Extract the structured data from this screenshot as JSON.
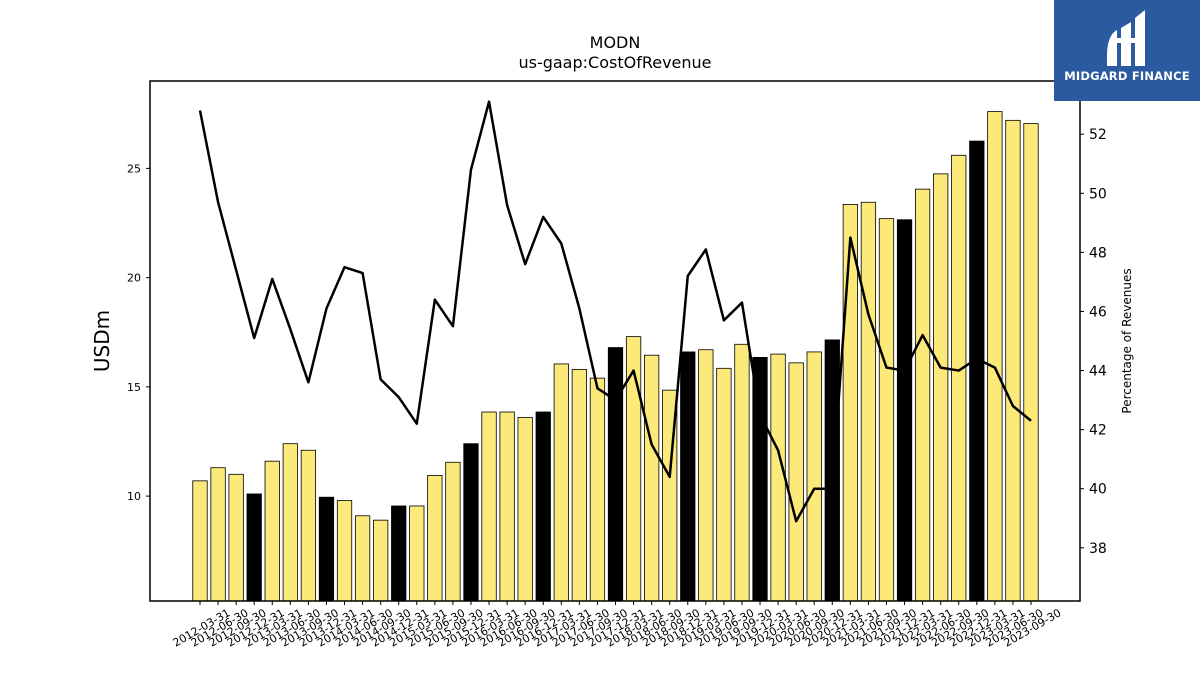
{
  "brand": {
    "name": "MIDGARD FINANCE",
    "bg_color": "#2c5aa0",
    "icon": "midgard-logo-icon"
  },
  "colors": {
    "bar_default": "#fbe97a",
    "bar_q4": "#000000",
    "line": "#000000"
  },
  "chart_data": {
    "type": "bar",
    "title": "MODN",
    "subtitle": "us-gaap:CostOfRevenue",
    "ylabel": "USDm",
    "y2label": "Percentage of Revenues",
    "ylim": [
      5.2,
      29.0
    ],
    "y2lim": [
      36.2,
      53.8
    ],
    "yticks": [
      10,
      15,
      20,
      25
    ],
    "y2ticks": [
      38,
      40,
      42,
      44,
      46,
      48,
      50,
      52
    ],
    "categories": [
      "2012-03-31",
      "2012-06-30",
      "2012-09-30",
      "2012-12-31",
      "2013-03-31",
      "2013-06-30",
      "2013-09-30",
      "2013-12-31",
      "2014-03-31",
      "2014-06-30",
      "2014-09-30",
      "2014-12-31",
      "2015-03-31",
      "2015-06-30",
      "2015-09-30",
      "2015-12-31",
      "2016-03-31",
      "2016-06-30",
      "2016-09-30",
      "2016-12-31",
      "2017-03-31",
      "2017-06-30",
      "2017-09-30",
      "2017-12-31",
      "2018-03-31",
      "2018-06-30",
      "2018-09-30",
      "2018-12-31",
      "2019-03-31",
      "2019-06-30",
      "2019-09-30",
      "2019-12-31",
      "2020-03-31",
      "2020-06-30",
      "2020-09-30",
      "2020-12-31",
      "2021-03-31",
      "2021-06-30",
      "2021-09-30",
      "2021-12-31",
      "2022-03-31",
      "2022-06-30",
      "2022-09-30",
      "2022-12-31",
      "2023-03-31",
      "2023-06-30",
      "2023-09-30"
    ],
    "series": [
      {
        "kind": "bar",
        "axis": "left",
        "values": [
          10.7,
          11.3,
          11.0,
          10.1,
          11.6,
          12.4,
          12.1,
          9.95,
          9.8,
          9.1,
          8.9,
          9.55,
          9.55,
          10.95,
          11.55,
          12.4,
          13.85,
          13.85,
          13.6,
          13.85,
          16.05,
          15.8,
          15.4,
          16.8,
          17.3,
          16.45,
          14.85,
          16.6,
          16.7,
          15.85,
          16.95,
          16.35,
          16.5,
          16.1,
          16.6,
          17.15,
          23.35,
          23.45,
          22.7,
          22.65,
          24.05,
          24.75,
          25.6,
          26.25,
          27.6,
          27.2,
          27.05
        ],
        "highlight": [
          false,
          false,
          false,
          true,
          false,
          false,
          false,
          true,
          false,
          false,
          false,
          true,
          false,
          false,
          false,
          true,
          false,
          false,
          false,
          true,
          false,
          false,
          false,
          true,
          false,
          false,
          false,
          true,
          false,
          false,
          false,
          true,
          false,
          false,
          false,
          true,
          false,
          false,
          false,
          true,
          false,
          false,
          false,
          true,
          false,
          false,
          false
        ]
      },
      {
        "kind": "line",
        "axis": "right",
        "values": [
          52.8,
          49.7,
          47.4,
          45.1,
          47.1,
          45.4,
          43.6,
          46.1,
          47.5,
          47.3,
          43.7,
          43.1,
          42.2,
          46.4,
          45.5,
          50.8,
          53.1,
          49.6,
          47.6,
          49.2,
          48.3,
          46.1,
          43.4,
          43.0,
          44.0,
          41.5,
          40.4,
          47.2,
          48.1,
          45.7,
          46.3,
          42.5,
          41.3,
          38.9,
          40.0,
          40.0,
          48.5,
          45.9,
          44.1,
          44.0,
          45.2,
          44.1,
          44.0,
          44.4,
          44.1,
          42.8,
          42.3
        ]
      }
    ]
  }
}
